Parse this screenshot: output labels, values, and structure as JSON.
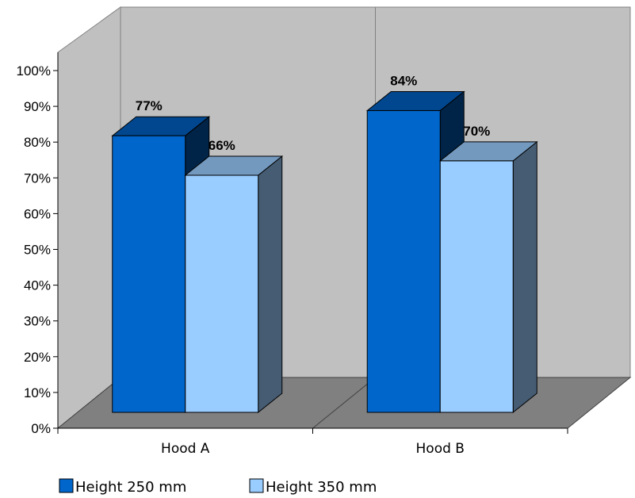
{
  "chart_data": {
    "type": "bar",
    "title": "",
    "xlabel": "",
    "ylabel": "",
    "categories": [
      "Hood A",
      "Hood B"
    ],
    "series": [
      {
        "name": "Height 250 mm",
        "values": [
          77,
          84
        ],
        "labels": [
          "77%",
          "84%"
        ],
        "color": "#0066CC"
      },
      {
        "name": "Height 350 mm",
        "values": [
          66,
          70
        ],
        "labels": [
          "66%",
          "70%"
        ],
        "color": "#99CCFF"
      }
    ],
    "ylim": [
      0,
      100
    ],
    "yticks": [
      "0%",
      "10%",
      "20%",
      "30%",
      "40%",
      "50%",
      "60%",
      "70%",
      "80%",
      "90%",
      "100%"
    ],
    "grid": false,
    "style": "3d",
    "legend_position": "bottom"
  }
}
